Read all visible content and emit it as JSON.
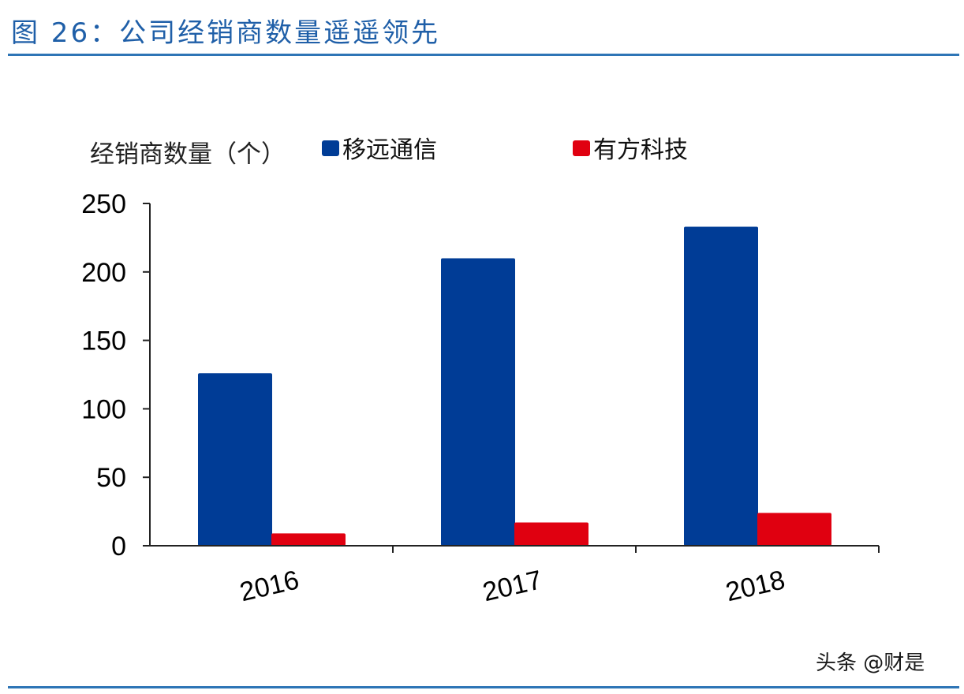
{
  "figure": {
    "title": "图 26：公司经销商数量遥遥领先"
  },
  "watermark": "头条 @财是",
  "colors": {
    "title": "#1f5fa8",
    "rule": "#2e75b6",
    "series_quectel": "#003c96",
    "series_youfang": "#e00010",
    "axis": "#222222"
  },
  "chart_data": {
    "type": "bar",
    "title": "",
    "ylabel": "经销商数量（个）",
    "xlabel": "",
    "categories": [
      "2016",
      "2017",
      "2018"
    ],
    "series": [
      {
        "name": "移远通信",
        "values": [
          126,
          210,
          233
        ]
      },
      {
        "name": "有方科技",
        "values": [
          9,
          17,
          24
        ]
      }
    ],
    "ylim": [
      0,
      250
    ],
    "yticks": [
      0,
      50,
      100,
      150,
      200,
      250
    ],
    "grid": false,
    "legend": "top"
  }
}
